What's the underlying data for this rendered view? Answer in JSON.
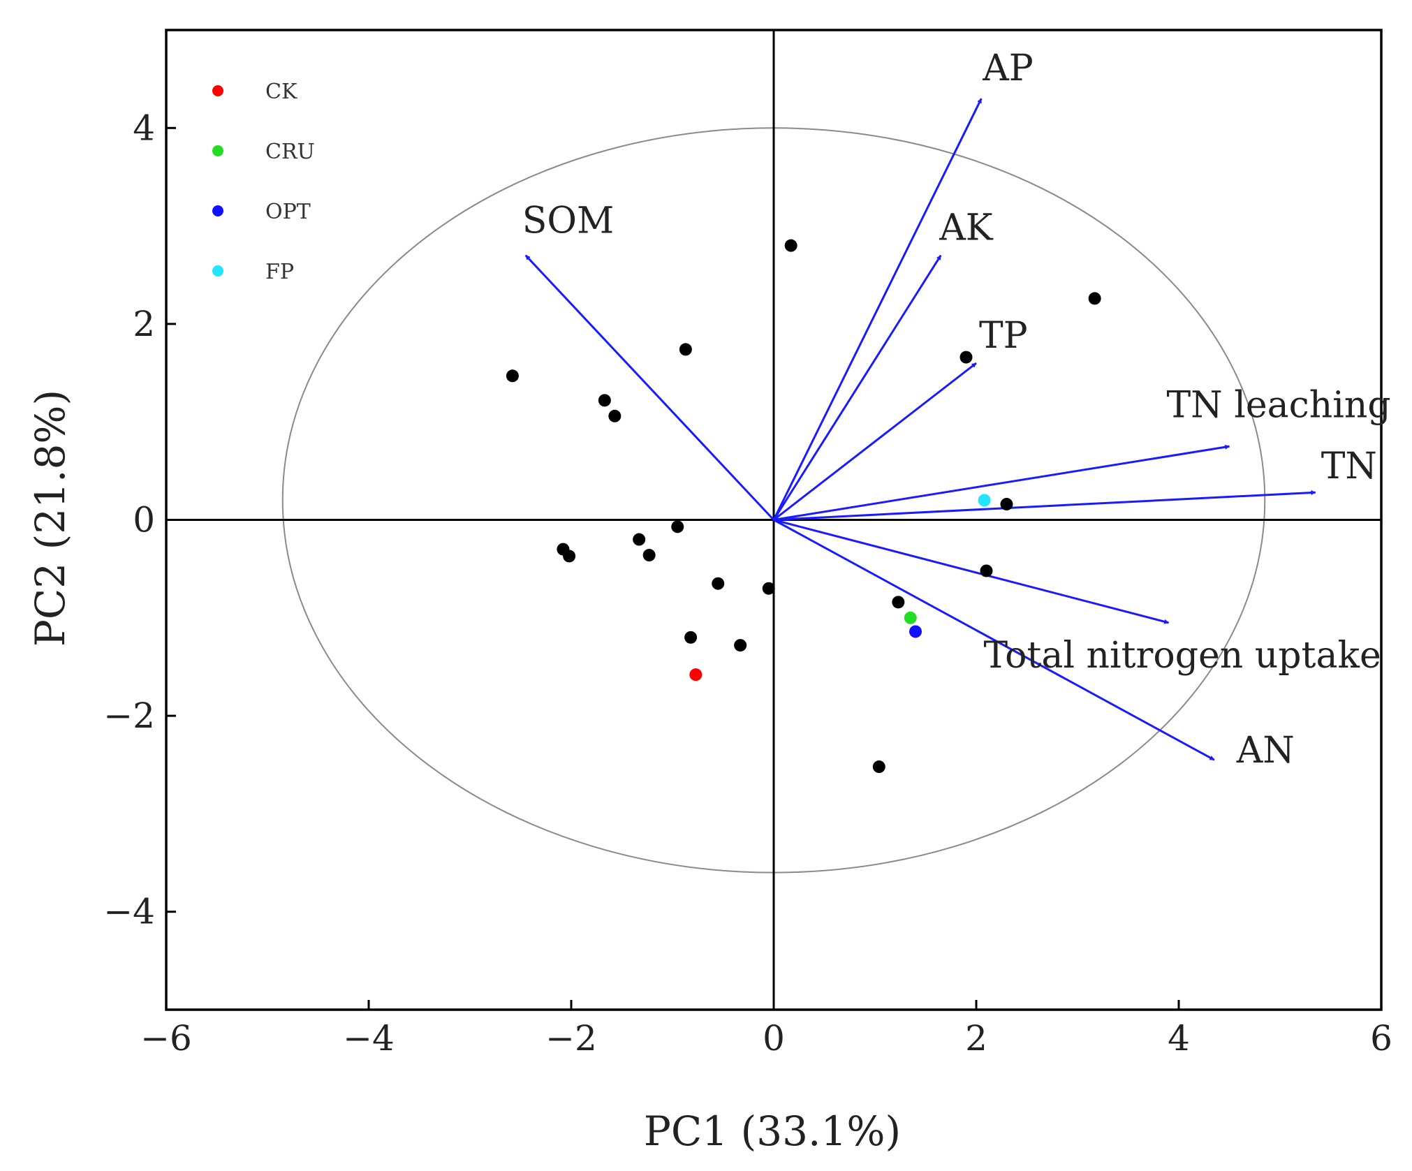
{
  "chart_data": {
    "type": "scatter",
    "subtype": "pca-biplot",
    "xlabel": "PC1 (33.1%)",
    "ylabel": "PC2 (21.8%)",
    "xlim": [
      -6,
      6
    ],
    "ylim": [
      -5,
      5
    ],
    "xticks": [
      -6,
      -4,
      -2,
      0,
      2,
      4,
      6
    ],
    "yticks": [
      -4,
      -2,
      0,
      2,
      4
    ],
    "xtick_labels": [
      "−6",
      "−4",
      "−2",
      "0",
      "2",
      "4",
      "6"
    ],
    "ytick_labels": [
      "−4",
      "−2",
      "0",
      "2",
      "4"
    ],
    "reference_circle": {
      "cx": 0,
      "cy": 0.2,
      "rx": 4.85,
      "ry": 3.8
    },
    "legend": [
      {
        "label": "CK",
        "color": "#ff0000"
      },
      {
        "label": "CRU",
        "color": "#22dd22"
      },
      {
        "label": "OPT",
        "color": "#1010ff"
      },
      {
        "label": "FP",
        "color": "#22e5ff"
      }
    ],
    "vector_color": "#1a1aff",
    "loadings": [
      {
        "label": "AP",
        "x": 2.05,
        "y": 4.3
      },
      {
        "label": "AK",
        "x": 1.65,
        "y": 2.7
      },
      {
        "label": "TP",
        "x": 2.0,
        "y": 1.6
      },
      {
        "label": "SOM",
        "x": -2.45,
        "y": 2.7
      },
      {
        "label": "TN leaching",
        "x": 4.5,
        "y": 0.75
      },
      {
        "label": "TN",
        "x": 5.35,
        "y": 0.28
      },
      {
        "label": "Total nitrogen uptake",
        "x": 3.9,
        "y": -1.05
      },
      {
        "label": "AN",
        "x": 4.35,
        "y": -2.45
      }
    ],
    "points": [
      {
        "x": 0.17,
        "y": 2.8,
        "color": "#000000"
      },
      {
        "x": 3.17,
        "y": 2.26,
        "color": "#000000"
      },
      {
        "x": 1.9,
        "y": 1.66,
        "color": "#000000"
      },
      {
        "x": -0.87,
        "y": 1.74,
        "color": "#000000"
      },
      {
        "x": -2.58,
        "y": 1.47,
        "color": "#000000"
      },
      {
        "x": -1.67,
        "y": 1.22,
        "color": "#000000"
      },
      {
        "x": -1.57,
        "y": 1.06,
        "color": "#000000"
      },
      {
        "x": 2.3,
        "y": 0.16,
        "color": "#000000"
      },
      {
        "x": 2.08,
        "y": 0.2,
        "color": "#22e5ff",
        "group": "FP"
      },
      {
        "x": -0.95,
        "y": -0.07,
        "color": "#000000"
      },
      {
        "x": -2.08,
        "y": -0.3,
        "color": "#000000"
      },
      {
        "x": -2.02,
        "y": -0.37,
        "color": "#000000"
      },
      {
        "x": -1.33,
        "y": -0.2,
        "color": "#000000"
      },
      {
        "x": -1.23,
        "y": -0.36,
        "color": "#000000"
      },
      {
        "x": 2.1,
        "y": -0.52,
        "color": "#000000"
      },
      {
        "x": -0.55,
        "y": -0.65,
        "color": "#000000"
      },
      {
        "x": -0.05,
        "y": -0.7,
        "color": "#000000"
      },
      {
        "x": 1.23,
        "y": -0.84,
        "color": "#000000"
      },
      {
        "x": 1.35,
        "y": -1.0,
        "color": "#22dd22",
        "group": "CRU"
      },
      {
        "x": 1.4,
        "y": -1.14,
        "color": "#1010ff",
        "group": "OPT"
      },
      {
        "x": -0.82,
        "y": -1.2,
        "color": "#000000"
      },
      {
        "x": -0.33,
        "y": -1.28,
        "color": "#000000"
      },
      {
        "x": -0.77,
        "y": -1.58,
        "color": "#ff0000",
        "group": "CK"
      },
      {
        "x": 1.04,
        "y": -2.52,
        "color": "#000000"
      }
    ]
  }
}
